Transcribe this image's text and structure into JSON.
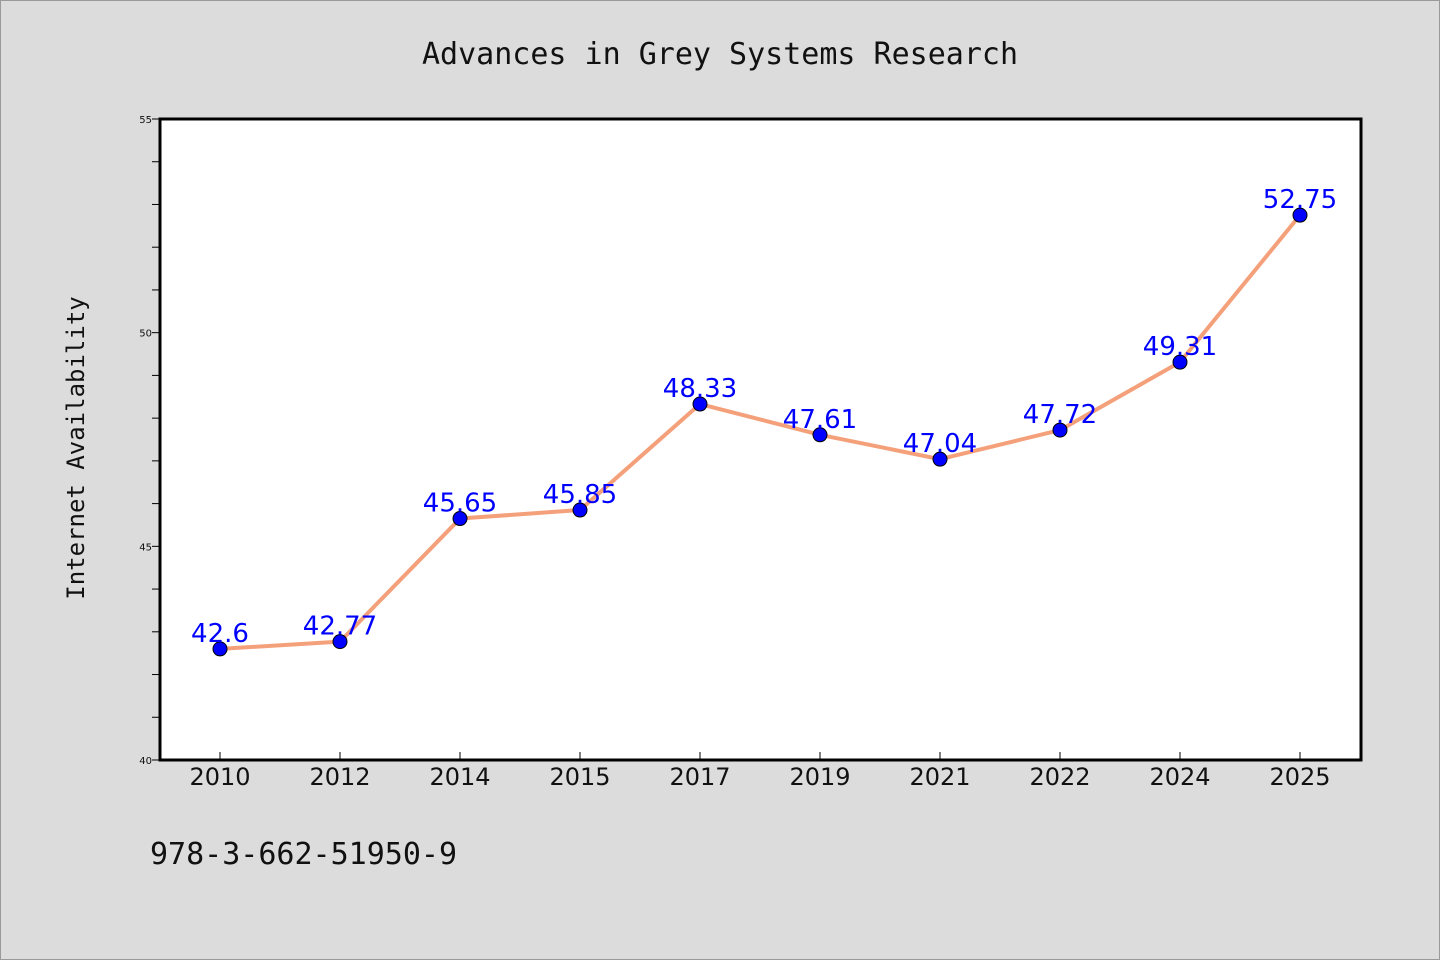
{
  "colors": {
    "background": "#dcdcdc",
    "plot_background": "#ffffff",
    "line": "#f4a07a",
    "marker": "#0000ff",
    "data_label": "#0000ff"
  },
  "footnote": "978-3-662-51950-9",
  "chart_data": {
    "type": "line",
    "title": "Advances in Grey Systems Research",
    "xlabel": "",
    "ylabel": "Internet Availability",
    "categories": [
      "2010",
      "2012",
      "2014",
      "2015",
      "2017",
      "2019",
      "2021",
      "2022",
      "2024",
      "2025"
    ],
    "series": [
      {
        "values": [
          42.6,
          42.77,
          45.65,
          45.85,
          48.33,
          47.61,
          47.04,
          47.72,
          49.31,
          52.75
        ],
        "data_labels": [
          "42.6",
          "42.77",
          "45.65",
          "45.85",
          "48.33",
          "47.61",
          "47.04",
          "47.72",
          "49.31",
          "52.75"
        ]
      }
    ],
    "ylim": [
      40,
      55
    ],
    "y_major_ticks": [
      40,
      45,
      50,
      55
    ],
    "y_tick_labels": [
      "40",
      "45",
      "50",
      "55"
    ],
    "y_minor_step": 1,
    "grid": false,
    "legend": "none"
  }
}
